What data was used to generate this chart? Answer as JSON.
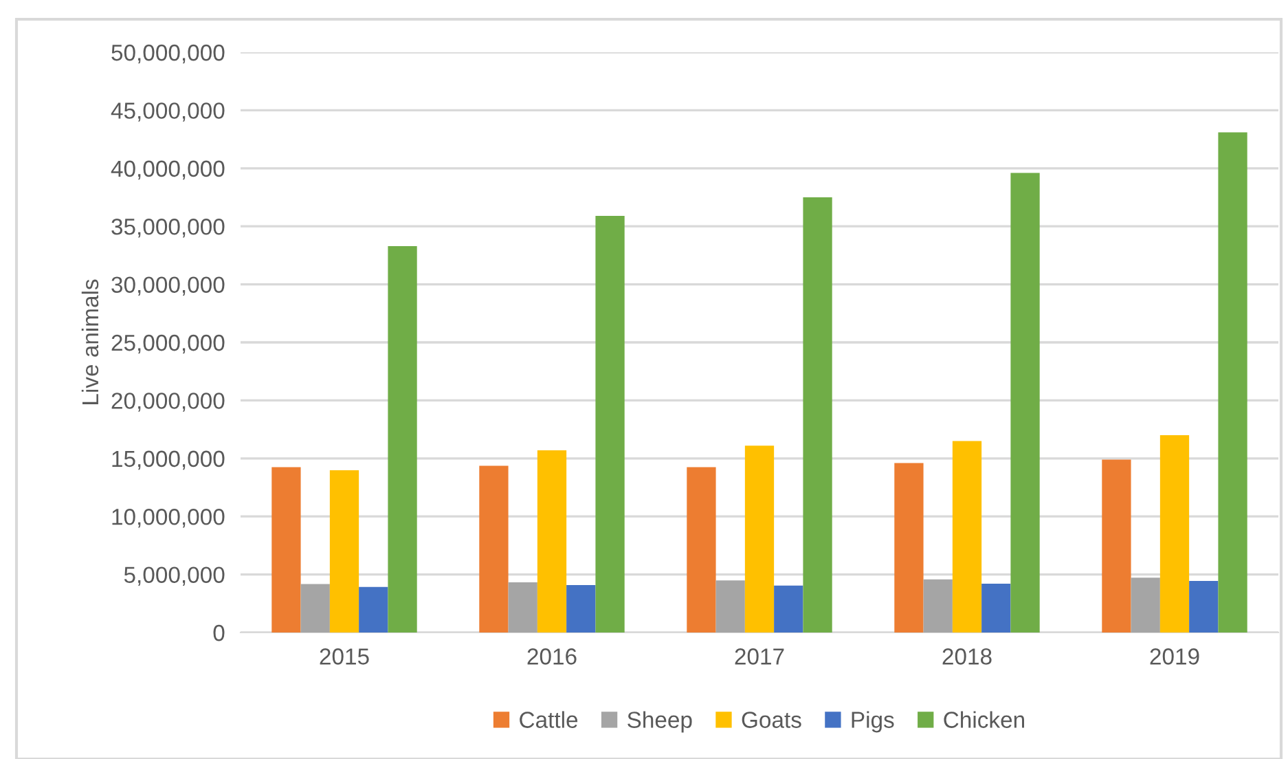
{
  "chart_data": {
    "type": "bar",
    "ylabel": "Live animals",
    "categories": [
      "2015",
      "2016",
      "2017",
      "2018",
      "2019"
    ],
    "series": [
      {
        "name": "Cattle",
        "color": "#ed7d31",
        "values": [
          14250000,
          14370000,
          14250000,
          14600000,
          14900000
        ]
      },
      {
        "name": "Sheep",
        "color": "#a5a5a5",
        "values": [
          4170000,
          4330000,
          4490000,
          4570000,
          4720000
        ]
      },
      {
        "name": "Goats",
        "color": "#ffc000",
        "values": [
          13980000,
          15700000,
          16100000,
          16500000,
          17000000
        ]
      },
      {
        "name": "Pigs",
        "color": "#4472c4",
        "values": [
          3930000,
          4090000,
          4050000,
          4210000,
          4450000
        ]
      },
      {
        "name": "Chicken",
        "color": "#70ad47",
        "values": [
          33300000,
          35900000,
          37500000,
          39600000,
          43100000
        ]
      }
    ],
    "ylim": [
      0,
      50000000
    ],
    "yticks": [
      {
        "value": 0,
        "label": "0"
      },
      {
        "value": 5000000,
        "label": "5,000,000"
      },
      {
        "value": 10000000,
        "label": "10,000,000"
      },
      {
        "value": 15000000,
        "label": "15,000,000"
      },
      {
        "value": 20000000,
        "label": "20,000,000"
      },
      {
        "value": 25000000,
        "label": "25,000,000"
      },
      {
        "value": 30000000,
        "label": "30,000,000"
      },
      {
        "value": 35000000,
        "label": "35,000,000"
      },
      {
        "value": 40000000,
        "label": "40,000,000"
      },
      {
        "value": 45000000,
        "label": "45,000,000"
      },
      {
        "value": 50000000,
        "label": "50,000,000"
      }
    ],
    "grid": "y",
    "legend": "bottom"
  }
}
